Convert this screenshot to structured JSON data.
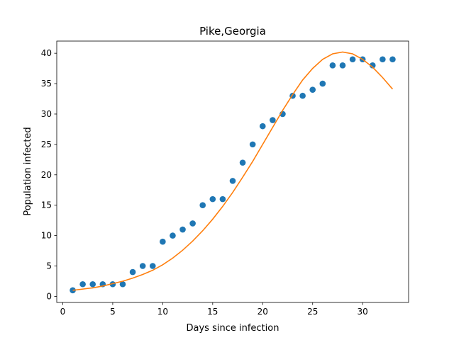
{
  "chart_data": {
    "type": "scatter",
    "title": "Pike,Georgia",
    "xlabel": "Days since infection",
    "ylabel": "Population infected",
    "xlim": [
      -0.6,
      34.6
    ],
    "ylim": [
      -1.0,
      42.0
    ],
    "xticks": [
      0,
      5,
      10,
      15,
      20,
      25,
      30
    ],
    "yticks": [
      0,
      5,
      10,
      15,
      20,
      25,
      30,
      35,
      40
    ],
    "grid": false,
    "series": [
      {
        "type": "scatter",
        "color": "#1f77b4",
        "x": [
          1,
          2,
          3,
          4,
          5,
          6,
          7,
          8,
          9,
          10,
          11,
          12,
          13,
          14,
          15,
          16,
          17,
          18,
          19,
          20,
          21,
          22,
          23,
          24,
          25,
          26,
          27,
          28,
          29,
          30,
          31,
          32,
          33
        ],
        "y": [
          1,
          2,
          2,
          2,
          2,
          2,
          4,
          5,
          5,
          9,
          10,
          11,
          12,
          15,
          16,
          16,
          19,
          22,
          25,
          28,
          29,
          30,
          33,
          33,
          34,
          35,
          38,
          38,
          39,
          39,
          38,
          39,
          39
        ]
      },
      {
        "type": "line",
        "color": "#ff7f0e",
        "x": [
          1,
          2,
          3,
          4,
          5,
          6,
          7,
          8,
          9,
          10,
          11,
          12,
          13,
          14,
          15,
          16,
          17,
          18,
          19,
          20,
          21,
          22,
          23,
          24,
          25,
          26,
          27,
          28,
          29,
          30,
          31,
          32,
          33
        ],
        "y": [
          1.0,
          1.2,
          1.4,
          1.7,
          2.1,
          2.5,
          3.0,
          3.6,
          4.3,
          5.2,
          6.3,
          7.6,
          9.1,
          10.8,
          12.7,
          14.8,
          17.1,
          19.6,
          22.2,
          25.0,
          27.8,
          30.6,
          33.2,
          35.6,
          37.5,
          39.0,
          39.9,
          40.2,
          39.9,
          39.0,
          37.7,
          36.0,
          34.1
        ]
      }
    ]
  }
}
